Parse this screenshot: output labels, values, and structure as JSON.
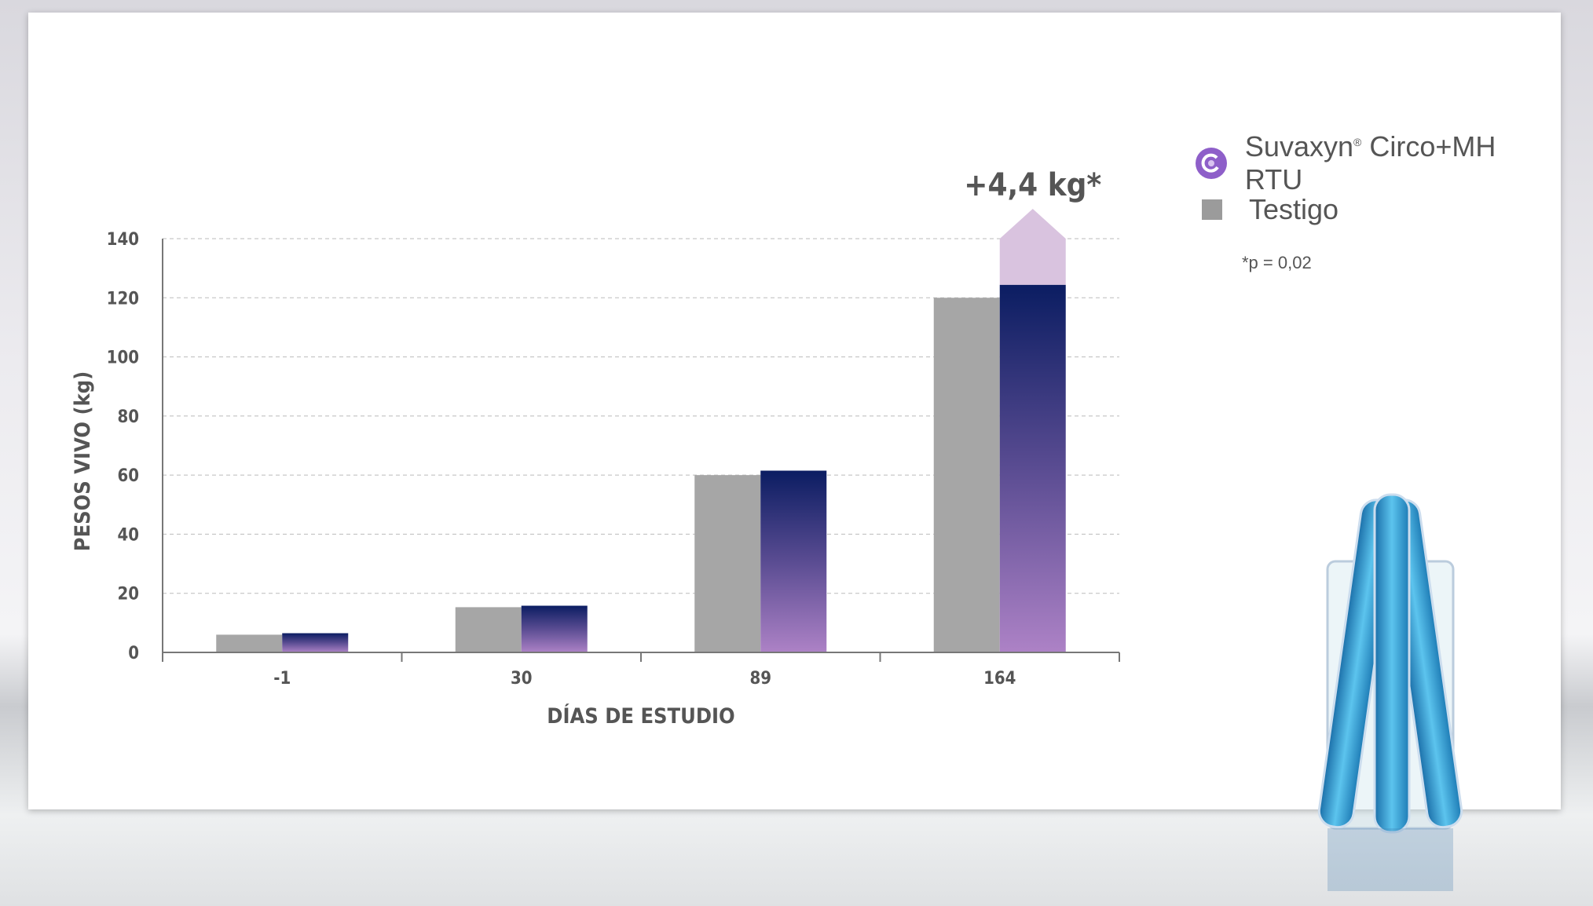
{
  "chart_data": {
    "type": "bar",
    "title": "",
    "xlabel": "DÍAS DE ESTUDIO",
    "ylabel": "PESOS VIVO (kg)",
    "ylim": [
      0,
      140
    ],
    "yticks": [
      0,
      20,
      40,
      60,
      80,
      100,
      120,
      140
    ],
    "categories": [
      "-1",
      "30",
      "89",
      "164"
    ],
    "grid": true,
    "legend_position": "right",
    "series": [
      {
        "name": "Testigo",
        "color": "#a6a6a6",
        "values": [
          6,
          15.3,
          60,
          120
        ]
      },
      {
        "name": "Suvaxyn® Circo+MH RTU",
        "color_top": "#0d1f63",
        "color_bottom": "#a57cc0",
        "values": [
          6.5,
          15.8,
          61.5,
          124.4
        ]
      }
    ],
    "annotation": {
      "text": "+4,4 kg*",
      "category": "164",
      "arrow_color": "#d9c3df"
    }
  },
  "legend": {
    "suvaxyn_name": "Suvaxyn",
    "suvaxyn_reg": "®",
    "suvaxyn_rest": " Circo+MH RTU",
    "testigo": "Testigo",
    "footnote": "*p = 0,02",
    "logo_color": "#8e5fc9"
  }
}
